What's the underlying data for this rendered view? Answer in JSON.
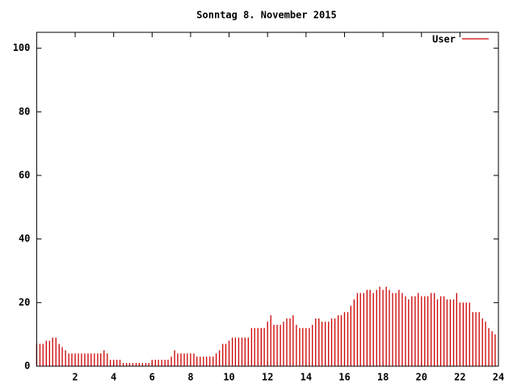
{
  "chart_data": {
    "type": "impulse",
    "title": "Sonntag 8. November 2015",
    "series": [
      {
        "name": "User",
        "color": "#cc0000",
        "x": [
          0,
          0.17,
          0.33,
          0.5,
          0.67,
          0.83,
          1,
          1.17,
          1.33,
          1.5,
          1.67,
          1.83,
          2,
          2.17,
          2.33,
          2.5,
          2.67,
          2.83,
          3,
          3.17,
          3.33,
          3.5,
          3.67,
          3.83,
          4,
          4.17,
          4.33,
          4.5,
          4.67,
          4.83,
          5,
          5.17,
          5.33,
          5.5,
          5.67,
          5.83,
          6,
          6.17,
          6.33,
          6.5,
          6.67,
          6.83,
          7,
          7.17,
          7.33,
          7.5,
          7.67,
          7.83,
          8,
          8.17,
          8.33,
          8.5,
          8.67,
          8.83,
          9,
          9.17,
          9.33,
          9.5,
          9.67,
          9.83,
          10,
          10.17,
          10.33,
          10.5,
          10.67,
          10.83,
          11,
          11.17,
          11.33,
          11.5,
          11.67,
          11.83,
          12,
          12.17,
          12.33,
          12.5,
          12.67,
          12.83,
          13,
          13.17,
          13.33,
          13.5,
          13.67,
          13.83,
          14,
          14.17,
          14.33,
          14.5,
          14.67,
          14.83,
          15,
          15.17,
          15.33,
          15.5,
          15.67,
          15.83,
          16,
          16.17,
          16.33,
          16.5,
          16.67,
          16.83,
          17,
          17.17,
          17.33,
          17.5,
          17.67,
          17.83,
          18,
          18.17,
          18.33,
          18.5,
          18.67,
          18.83,
          19,
          19.17,
          19.33,
          19.5,
          19.67,
          19.83,
          20,
          20.17,
          20.33,
          20.5,
          20.67,
          20.83,
          21,
          21.17,
          21.33,
          21.5,
          21.67,
          21.83,
          22,
          22.17,
          22.33,
          22.5,
          22.67,
          22.83,
          23,
          23.17,
          23.33,
          23.5,
          23.67,
          23.83
        ],
        "values": [
          7,
          7,
          7,
          8,
          8,
          9,
          9,
          7,
          6,
          5,
          4,
          4,
          4,
          4,
          4,
          4,
          4,
          4,
          4,
          4,
          4,
          5,
          4,
          2,
          2,
          2,
          2,
          1,
          1,
          1,
          1,
          1,
          1,
          1,
          1,
          1,
          2,
          2,
          2,
          2,
          2,
          2,
          3,
          5,
          4,
          4,
          4,
          4,
          4,
          4,
          3,
          3,
          3,
          3,
          3,
          3,
          4,
          5,
          7,
          7,
          8,
          9,
          9,
          9,
          9,
          9,
          9,
          12,
          12,
          12,
          12,
          12,
          14,
          16,
          13,
          13,
          13,
          14,
          15,
          15,
          16,
          13,
          12,
          12,
          12,
          12,
          13,
          15,
          15,
          14,
          14,
          14,
          15,
          15,
          16,
          16,
          17,
          17,
          19,
          21,
          23,
          23,
          23,
          24,
          24,
          23,
          24,
          25,
          24,
          25,
          24,
          23,
          23,
          24,
          23,
          22,
          21,
          22,
          22,
          23,
          22,
          22,
          22,
          23,
          23,
          21,
          22,
          22,
          21,
          21,
          21,
          23,
          20,
          20,
          20,
          20,
          17,
          17,
          17,
          15,
          14,
          12,
          11,
          10
        ]
      }
    ],
    "xlim": [
      0,
      24
    ],
    "xticks": [
      2,
      4,
      6,
      8,
      10,
      12,
      14,
      16,
      18,
      20,
      22,
      24
    ],
    "ylim": [
      0,
      105
    ],
    "yticks": [
      0,
      20,
      40,
      60,
      80,
      100
    ],
    "legend": "top right"
  }
}
